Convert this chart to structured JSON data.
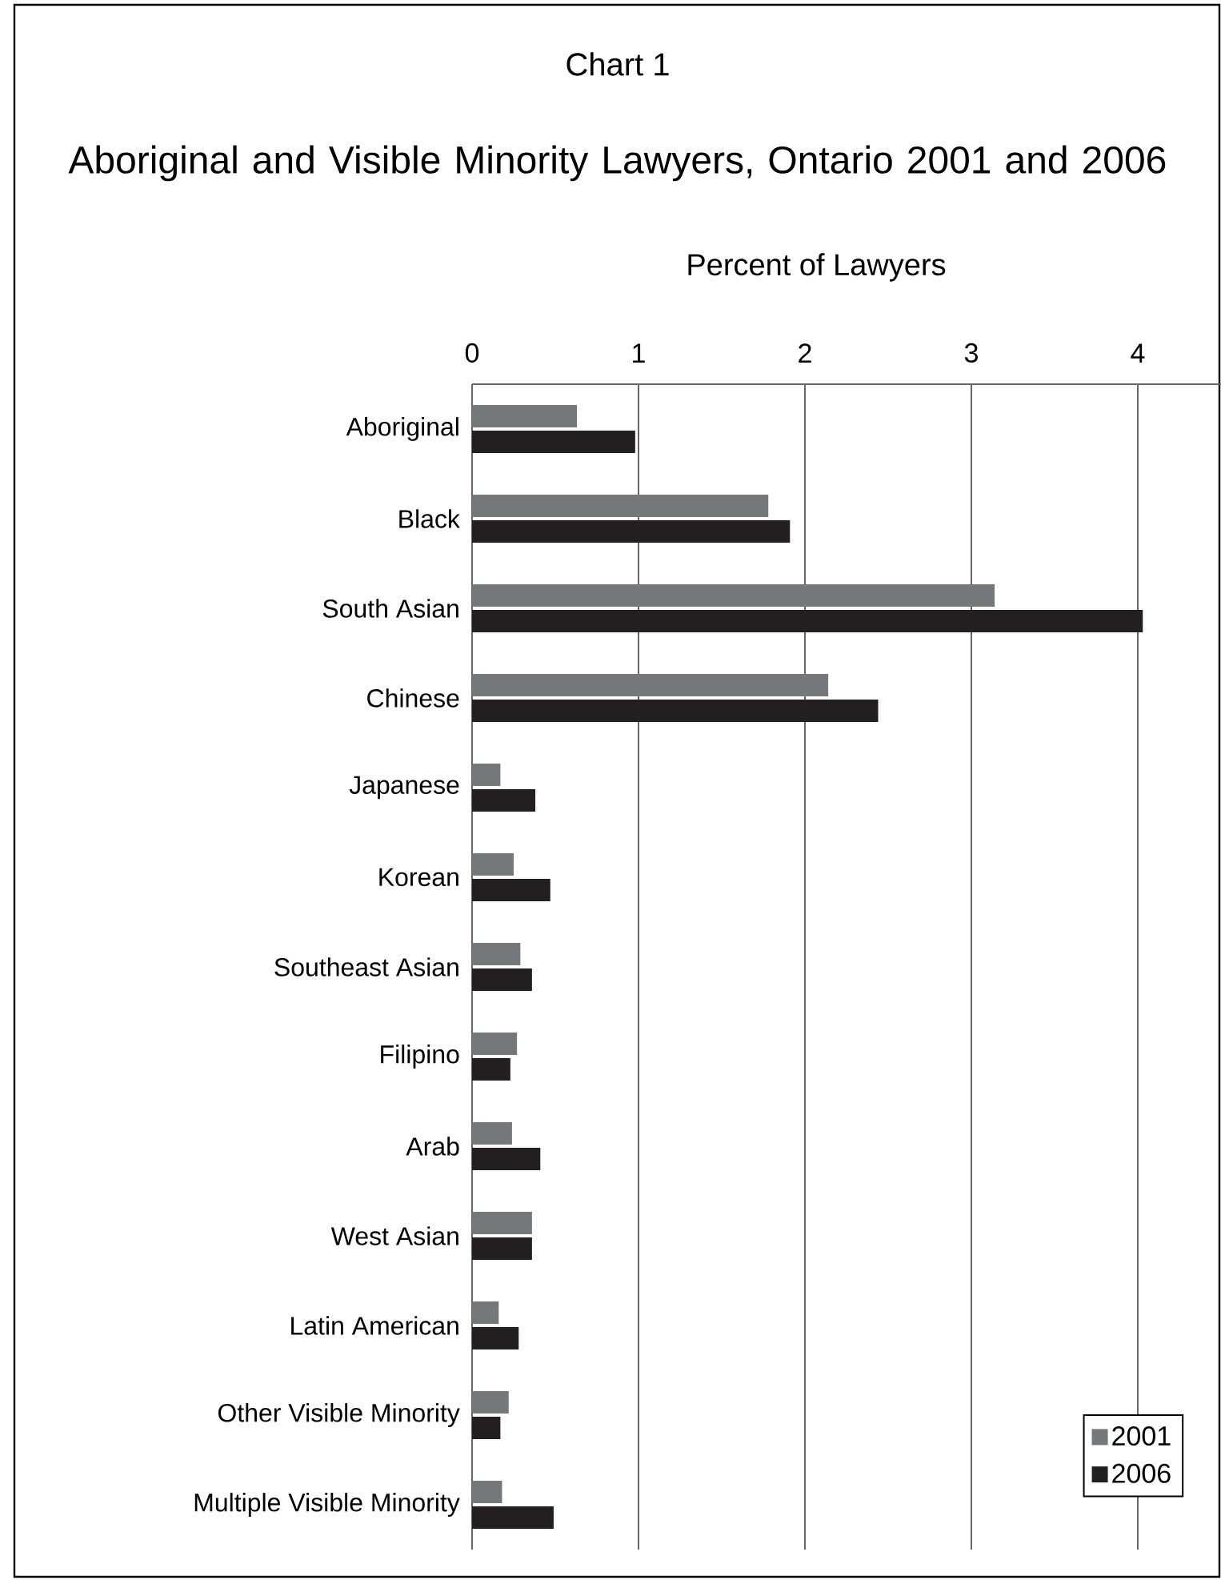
{
  "chart_data": {
    "type": "bar",
    "orientation": "horizontal",
    "subtitle": "Chart 1",
    "title": "Aboriginal and Visible Minority Lawyers, Ontario 2001 and 2006",
    "xlabel": "Percent of Lawyers",
    "categories": [
      "Aboriginal",
      "Black",
      "South Asian",
      "Chinese",
      "Japanese",
      "Korean",
      "Southeast Asian",
      "Filipino",
      "Arab",
      "West Asian",
      "Latin American",
      "Other Visible Minority",
      "Multiple Visible Minority"
    ],
    "series": [
      {
        "name": "2001",
        "color": "#76777b",
        "values": [
          0.63,
          1.78,
          3.14,
          2.14,
          0.17,
          0.25,
          0.29,
          0.27,
          0.24,
          0.36,
          0.16,
          0.22,
          0.18
        ]
      },
      {
        "name": "2006",
        "color": "#231f20",
        "values": [
          0.98,
          1.91,
          4.03,
          2.44,
          0.38,
          0.47,
          0.36,
          0.23,
          0.41,
          0.36,
          0.28,
          0.17,
          0.49
        ]
      }
    ],
    "xlim": [
      0,
      4.5
    ],
    "xticks": [
      0,
      1,
      2,
      3,
      4
    ],
    "grid": "x",
    "legend": "bottom right"
  }
}
